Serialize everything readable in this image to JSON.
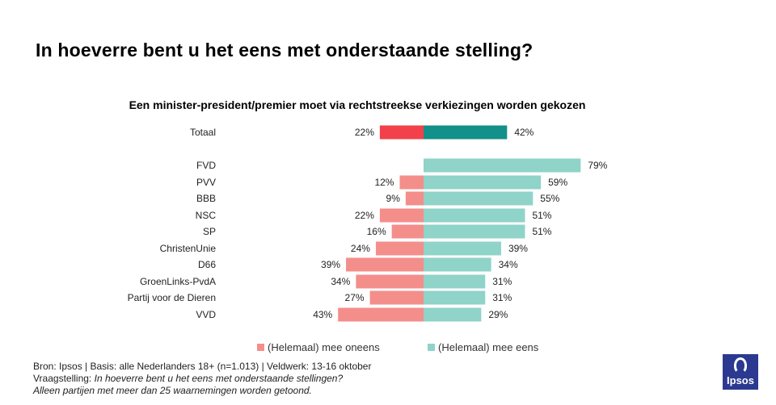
{
  "page": {
    "title": "In hoeverre bent u het eens met onderstaande stelling?"
  },
  "chart_data": {
    "type": "bar",
    "orientation": "horizontal-diverging",
    "title": "Een minister-president/premier moet via rechtstreekse verkiezingen worden gekozen",
    "categories": [
      "Totaal",
      "FVD",
      "PVV",
      "BBB",
      "NSC",
      "SP",
      "ChristenUnie",
      "D66",
      "GroenLinks-PvdA",
      "Partij voor de Dieren",
      "VVD"
    ],
    "series": [
      {
        "name": "(Helemaal) mee oneens",
        "values": [
          22,
          null,
          12,
          9,
          22,
          16,
          24,
          39,
          34,
          27,
          43
        ],
        "labels": [
          "22%",
          "",
          "12%",
          "9%",
          "22%",
          "16%",
          "24%",
          "39%",
          "34%",
          "27%",
          "43%"
        ],
        "color": "#f48e8b",
        "total_color": "#f2414a"
      },
      {
        "name": "(Helemaal) mee eens",
        "values": [
          42,
          79,
          59,
          55,
          51,
          51,
          39,
          34,
          31,
          31,
          29
        ],
        "labels": [
          "42%",
          "79%",
          "59%",
          "55%",
          "51%",
          "51%",
          "39%",
          "34%",
          "31%",
          "31%",
          "29%"
        ],
        "color": "#8fd3c9",
        "total_color": "#139089"
      }
    ],
    "legend_position": "bottom",
    "grid": false
  },
  "legend": {
    "disagree_label": "(Helemaal) mee oneens",
    "agree_label": "(Helemaal) mee eens"
  },
  "footer": {
    "line1": "Bron: Ipsos | Basis: alle Nederlanders  18+ (n=1.013) | Veldwerk: 13-16  oktober",
    "line2_prefix": "Vraagstelling: ",
    "line2_question": "In hoeverre  bent u het eens met onderstaande  stellingen?",
    "line3": "Alleen partijen  met meer dan 25 waarnemingen   worden  getoond."
  },
  "logo": {
    "text": "Ipsos",
    "color": "#2b3990"
  }
}
